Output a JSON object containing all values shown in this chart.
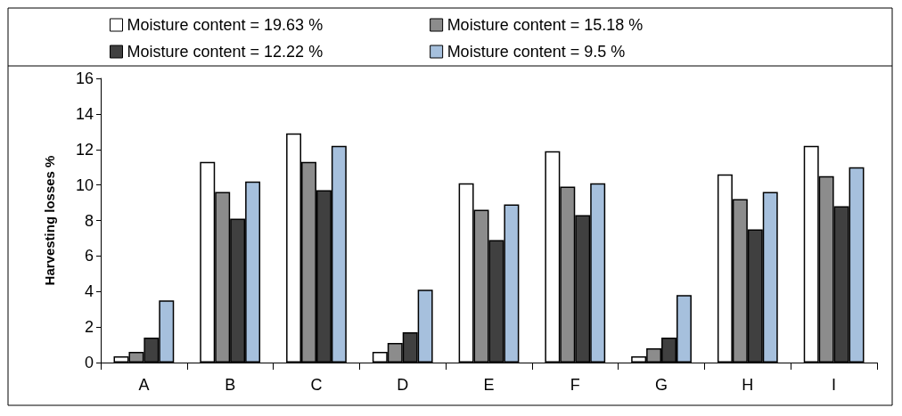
{
  "chart_data": {
    "type": "bar",
    "ylabel": "Harvesting losses %",
    "categories": [
      "A",
      "B",
      "C",
      "D",
      "E",
      "F",
      "G",
      "H",
      "I"
    ],
    "series": [
      {
        "name": "Moisture content = 19.63 %",
        "color": "#ffffff",
        "values": [
          0.35,
          11.3,
          12.9,
          0.6,
          10.1,
          11.9,
          0.35,
          10.6,
          12.2
        ]
      },
      {
        "name": "Moisture content = 15.18 %",
        "color": "#8c8c8c",
        "values": [
          0.6,
          9.6,
          11.3,
          1.1,
          8.6,
          9.9,
          0.8,
          9.2,
          10.5
        ]
      },
      {
        "name": "Moisture content = 12.22 %",
        "color": "#404040",
        "values": [
          1.4,
          8.1,
          9.7,
          1.7,
          6.9,
          8.3,
          1.4,
          7.5,
          8.8
        ]
      },
      {
        "name": "Moisture content = 9.5 %",
        "color": "#a6c0dd",
        "values": [
          3.5,
          10.2,
          12.2,
          4.1,
          8.9,
          10.1,
          3.8,
          9.6,
          11.0
        ]
      }
    ],
    "ylim": [
      0,
      16
    ],
    "yticks": [
      0,
      2,
      4,
      6,
      8,
      10,
      12,
      14,
      16
    ],
    "grid": false,
    "legend": "top"
  }
}
